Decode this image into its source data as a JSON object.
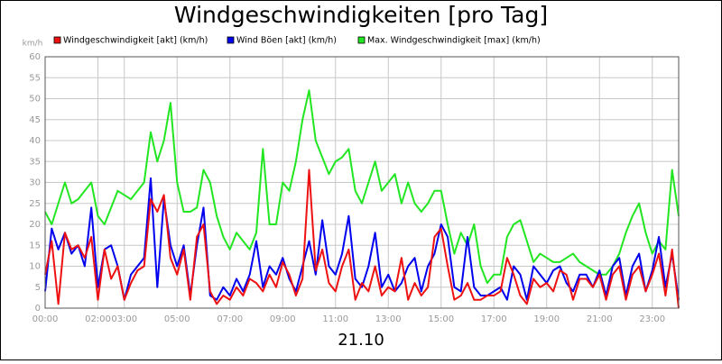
{
  "chart_data": {
    "type": "line",
    "title": "Windgeschwindigkeiten [pro Tag]",
    "subtitle": "21.10",
    "y_unit": "km/h",
    "grid": true,
    "legend": "top",
    "xlim": [
      0,
      24
    ],
    "xticks": [
      {
        "value": 0,
        "label": "00:00"
      },
      {
        "value": 2,
        "label": "02:00"
      },
      {
        "value": 3,
        "label": "03:00"
      },
      {
        "value": 5,
        "label": "05:00"
      },
      {
        "value": 7,
        "label": "07:00"
      },
      {
        "value": 9,
        "label": "09:00"
      },
      {
        "value": 11,
        "label": "11:00"
      },
      {
        "value": 13,
        "label": "13:00"
      },
      {
        "value": 15,
        "label": "15:00"
      },
      {
        "value": 17,
        "label": "17:00"
      },
      {
        "value": 19,
        "label": "19:00"
      },
      {
        "value": 21,
        "label": "21:00"
      },
      {
        "value": 23,
        "label": "23:00"
      }
    ],
    "ylim": [
      0,
      60
    ],
    "yticks": [
      0,
      5,
      10,
      15,
      20,
      25,
      30,
      35,
      40,
      45,
      50,
      55,
      60
    ],
    "x": [
      0,
      0.25,
      0.5,
      0.75,
      1,
      1.25,
      1.5,
      1.75,
      2,
      2.25,
      2.5,
      2.75,
      3,
      3.25,
      3.5,
      3.75,
      4,
      4.25,
      4.5,
      4.75,
      5,
      5.25,
      5.5,
      5.75,
      6,
      6.25,
      6.5,
      6.75,
      7,
      7.25,
      7.5,
      7.75,
      8,
      8.25,
      8.5,
      8.75,
      9,
      9.25,
      9.5,
      9.75,
      10,
      10.25,
      10.5,
      10.75,
      11,
      11.25,
      11.5,
      11.75,
      12,
      12.25,
      12.5,
      12.75,
      13,
      13.25,
      13.5,
      13.75,
      14,
      14.25,
      14.5,
      14.75,
      15,
      15.25,
      15.5,
      15.75,
      16,
      16.25,
      16.5,
      16.75,
      17,
      17.25,
      17.5,
      17.75,
      18,
      18.25,
      18.5,
      18.75,
      19,
      19.25,
      19.5,
      19.75,
      20,
      20.25,
      20.5,
      20.75,
      21,
      21.25,
      21.5,
      21.75,
      22,
      22.25,
      22.5,
      22.75,
      23,
      23.25,
      23.5,
      23.75,
      24
    ],
    "series": [
      {
        "name": "Max. Windgeschwindigkeit [max] (km/h)",
        "color": "#22e622",
        "values": [
          23,
          20,
          25,
          30,
          25,
          26,
          28,
          30,
          22,
          20,
          24,
          28,
          27,
          26,
          28,
          30,
          42,
          35,
          40,
          49,
          30,
          23,
          23,
          24,
          33,
          30,
          22,
          17,
          14,
          18,
          16,
          14,
          18,
          38,
          20,
          20,
          30,
          28,
          35,
          45,
          52,
          40,
          36,
          32,
          35,
          36,
          38,
          28,
          25,
          30,
          35,
          28,
          30,
          32,
          25,
          30,
          25,
          23,
          25,
          28,
          28,
          20,
          13,
          18,
          15,
          20,
          10,
          6,
          8,
          8,
          17,
          20,
          21,
          16,
          11,
          13,
          12,
          11,
          11,
          12,
          13,
          11,
          10,
          9,
          8,
          8,
          10,
          13,
          18,
          22,
          25,
          18,
          13,
          16,
          14,
          33,
          22
        ]
      },
      {
        "name": "Wind Böen [akt] (km/h)",
        "color": "#0000ee",
        "values": [
          4,
          19,
          14,
          18,
          13,
          15,
          10,
          24,
          5,
          14,
          15,
          10,
          2,
          8,
          10,
          12,
          31,
          5,
          26,
          15,
          10,
          15,
          3,
          15,
          24,
          3,
          2,
          5,
          3,
          7,
          4,
          8,
          16,
          5,
          10,
          8,
          12,
          7,
          4,
          10,
          16,
          8,
          21,
          10,
          8,
          13,
          22,
          7,
          5,
          10,
          18,
          5,
          8,
          4,
          6,
          10,
          12,
          4,
          10,
          13,
          20,
          17,
          5,
          4,
          17,
          5,
          3,
          3,
          4,
          5,
          2,
          10,
          8,
          2,
          10,
          8,
          6,
          9,
          10,
          6,
          4,
          8,
          8,
          5,
          9,
          3,
          10,
          12,
          3,
          10,
          13,
          4,
          9,
          17,
          5,
          13,
          2
        ]
      },
      {
        "name": "Windgeschwindigkeit [akt] (km/h)",
        "color": "#ee1111",
        "values": [
          8,
          16,
          1,
          18,
          14,
          15,
          12,
          17,
          2,
          14,
          7,
          10,
          2,
          6,
          9,
          10,
          26,
          23,
          27,
          12,
          8,
          14,
          2,
          17,
          20,
          4,
          1,
          3,
          2,
          5,
          3,
          7,
          6,
          4,
          8,
          5,
          11,
          8,
          3,
          7,
          33,
          9,
          14,
          6,
          4,
          10,
          14,
          2,
          6,
          4,
          10,
          3,
          5,
          4,
          12,
          2,
          6,
          3,
          5,
          17,
          19,
          10,
          2,
          3,
          6,
          2,
          2,
          3,
          3,
          4,
          12,
          8,
          3,
          1,
          7,
          5,
          6,
          4,
          9,
          8,
          2,
          7,
          7,
          5,
          8,
          2,
          8,
          10,
          2,
          8,
          10,
          4,
          8,
          13,
          3,
          14,
          0
        ]
      }
    ]
  }
}
